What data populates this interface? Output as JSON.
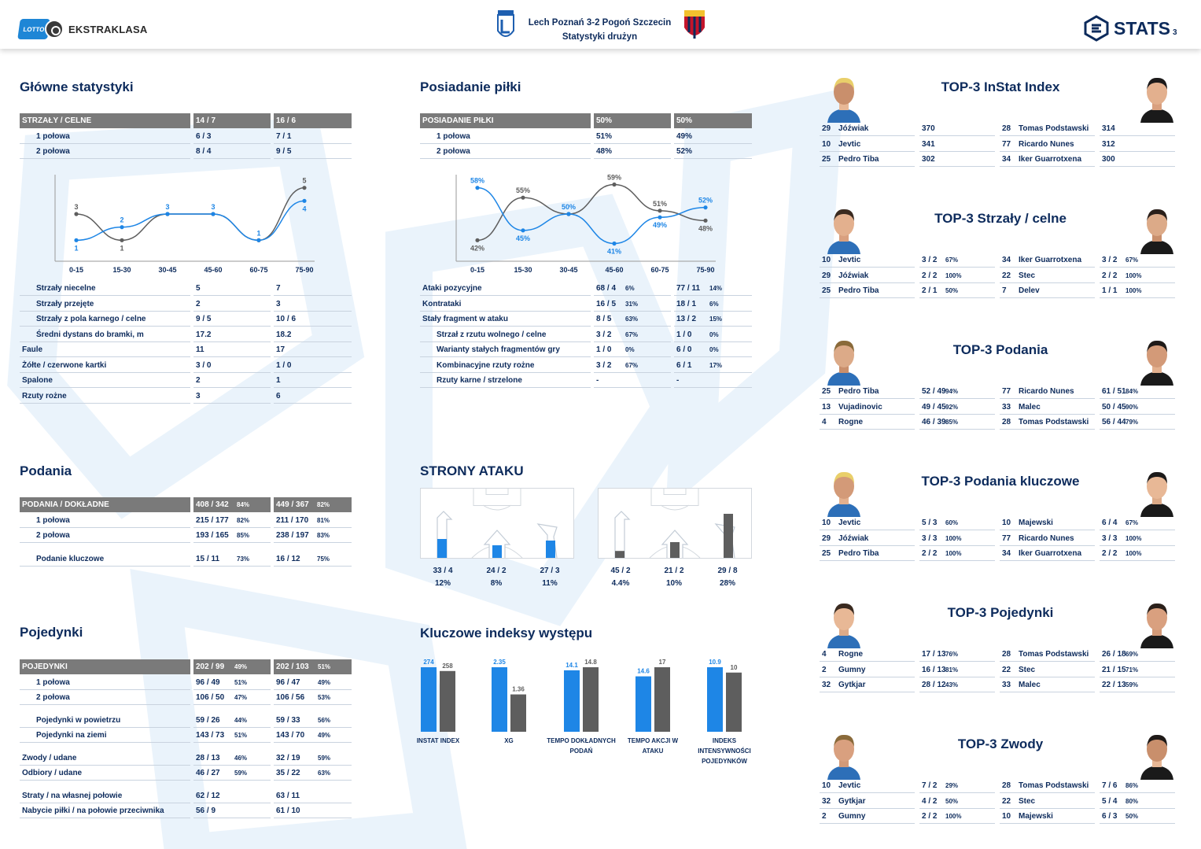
{
  "header": {
    "league": "EKSTRAKLASA",
    "lotto": "LOTTO",
    "match": "Lech Poznań 3-2 Pogoń Szczecin",
    "subtitle": "Statystyki drużyn",
    "brand": "STATS",
    "page": "3"
  },
  "colors": {
    "lech": "#1e86e6",
    "pogon": "#5e5e5e",
    "navy": "#0d2b5c",
    "header_grey": "#7a7a7a"
  },
  "main": {
    "title": "Główne statystyki",
    "head": {
      "label": "STRZAŁY / CELNE",
      "a": "14 / 7",
      "b": "16 / 6"
    },
    "halves": [
      {
        "label": "1 połowa",
        "a": "6 / 3",
        "b": "7 / 1"
      },
      {
        "label": "2 połowa",
        "a": "8 / 4",
        "b": "9 / 5"
      }
    ],
    "rows": [
      {
        "label": "Strzały niecelne",
        "a": "5",
        "b": "7",
        "indent": true
      },
      {
        "label": "Strzały przejęte",
        "a": "2",
        "b": "3",
        "indent": true
      },
      {
        "label": "Strzały z pola karnego / celne",
        "a": "9 / 5",
        "b": "10 / 6",
        "indent": true
      },
      {
        "label": "Średni dystans do bramki, m",
        "a": "17.2",
        "b": "18.2",
        "indent": true
      },
      {
        "label": "Faule",
        "a": "11",
        "b": "17",
        "indent": false
      },
      {
        "label": "Żółte / czerwone kartki",
        "a": "3 / 0",
        "b": "1 / 0",
        "indent": false
      },
      {
        "label": "Spalone",
        "a": "2",
        "b": "1",
        "indent": false
      },
      {
        "label": "Rzuty rożne",
        "a": "3",
        "b": "6",
        "indent": false
      }
    ]
  },
  "shots_chart": {
    "type": "line",
    "categories": [
      "0-15",
      "15-30",
      "30-45",
      "45-60",
      "60-75",
      "75-90"
    ],
    "series": [
      {
        "values": [
          1,
          2,
          3,
          3,
          1,
          4
        ],
        "labels": [
          "1",
          "2",
          "3",
          "3",
          "1",
          "4"
        ]
      },
      {
        "values": [
          3,
          1,
          3,
          3,
          1,
          5
        ],
        "labels": [
          "3",
          "1",
          "",
          "",
          "",
          "5"
        ]
      }
    ],
    "ylim": [
      0,
      6
    ]
  },
  "possession": {
    "title": "Posiadanie piłki",
    "head": {
      "label": "POSIADANIE PIŁKI",
      "a": "50%",
      "b": "50%"
    },
    "halves": [
      {
        "label": "1 połowa",
        "a": "51%",
        "b": "49%"
      },
      {
        "label": "2 połowa",
        "a": "48%",
        "b": "52%"
      }
    ],
    "rows": [
      {
        "label": "Ataki pozycyjne",
        "a": "68 / 4",
        "ap": "6%",
        "b": "77 / 11",
        "bp": "14%",
        "indent": false
      },
      {
        "label": "Kontrataki",
        "a": "16 / 5",
        "ap": "31%",
        "b": "18 / 1",
        "bp": "6%",
        "indent": false
      },
      {
        "label": "Stały fragment w ataku",
        "a": "8 / 5",
        "ap": "63%",
        "b": "13 / 2",
        "bp": "15%",
        "indent": false
      },
      {
        "label": "Strzał z rzutu wolnego / celne",
        "a": "3 / 2",
        "ap": "67%",
        "b": "1 / 0",
        "bp": "0%",
        "indent": true
      },
      {
        "label": "Warianty stałych fragmentów gry",
        "a": "1 / 0",
        "ap": "0%",
        "b": "6 / 0",
        "bp": "0%",
        "indent": true
      },
      {
        "label": "Kombinacyjne rzuty rożne",
        "a": "3 / 2",
        "ap": "67%",
        "b": "6 / 1",
        "bp": "17%",
        "indent": true
      },
      {
        "label": "Rzuty karne / strzelone",
        "a": "-",
        "ap": "",
        "b": "-",
        "bp": "",
        "indent": true
      }
    ]
  },
  "possession_chart": {
    "type": "line",
    "categories": [
      "0-15",
      "15-30",
      "30-45",
      "45-60",
      "60-75",
      "75-90"
    ],
    "series": [
      {
        "values": [
          58,
          45,
          50,
          41,
          49,
          52
        ],
        "labels": [
          "58%",
          "45%",
          "50%",
          "41%",
          "49%",
          "52%"
        ]
      },
      {
        "values": [
          42,
          55,
          50,
          59,
          51,
          48
        ],
        "labels": [
          "42%",
          "55%",
          "",
          "59%",
          "51%",
          "48%"
        ]
      }
    ],
    "ylim": [
      38,
      62
    ]
  },
  "passes": {
    "title": "Podania",
    "head": {
      "label": "PODANIA / DOKŁADNE",
      "a": "408 / 342",
      "ap": "84%",
      "b": "449 / 367",
      "bp": "82%"
    },
    "rows": [
      {
        "label": "1 połowa",
        "a": "215 / 177",
        "ap": "82%",
        "b": "211 / 170",
        "bp": "81%"
      },
      {
        "label": "2 połowa",
        "a": "193 / 165",
        "ap": "85%",
        "b": "238 / 197",
        "bp": "83%"
      },
      {
        "label": "Podanie kluczowe",
        "a": "15 / 11",
        "ap": "73%",
        "b": "16 / 12",
        "bp": "75%"
      }
    ]
  },
  "duels": {
    "title": "Pojedynki",
    "head": {
      "label": "POJEDYNKI",
      "a": "202 / 99",
      "ap": "49%",
      "b": "202 / 103",
      "bp": "51%"
    },
    "rows": [
      {
        "label": "1 połowa",
        "a": "96 / 49",
        "ap": "51%",
        "b": "96 / 47",
        "bp": "49%",
        "indent": true
      },
      {
        "label": "2 połowa",
        "a": "106 / 50",
        "ap": "47%",
        "b": "106 / 56",
        "bp": "53%",
        "indent": true
      },
      {
        "label": "Pojedynki w powietrzu",
        "a": "59 / 26",
        "ap": "44%",
        "b": "59 / 33",
        "bp": "56%",
        "indent": true
      },
      {
        "label": "Pojedynki na ziemi",
        "a": "143 / 73",
        "ap": "51%",
        "b": "143 / 70",
        "bp": "49%",
        "indent": true
      },
      {
        "label": "Zwody / udane",
        "a": "28 / 13",
        "ap": "46%",
        "b": "32 / 19",
        "bp": "59%",
        "indent": false
      },
      {
        "label": "Odbiory / udane",
        "a": "46 / 27",
        "ap": "59%",
        "b": "35 / 22",
        "bp": "63%",
        "indent": false
      },
      {
        "label": "Straty / na własnej połowie",
        "a": "62 / 12",
        "ap": "",
        "b": "63 / 11",
        "bp": "",
        "indent": false
      },
      {
        "label": "Nabycie piłki / na połowie przeciwnika",
        "a": "56 / 9",
        "ap": "",
        "b": "61 / 10",
        "bp": "",
        "indent": false
      }
    ]
  },
  "attack": {
    "title": "STRONY ATAKU",
    "lech": [
      {
        "value": "33 / 4",
        "pct": "12%",
        "fill": 12
      },
      {
        "value": "24 / 2",
        "pct": "8%",
        "fill": 8
      },
      {
        "value": "27 / 3",
        "pct": "11%",
        "fill": 11
      }
    ],
    "pogon": [
      {
        "value": "45 / 2",
        "pct": "4.4%",
        "fill": 4.4
      },
      {
        "value": "21 / 2",
        "pct": "10%",
        "fill": 10
      },
      {
        "value": "29 / 8",
        "pct": "28%",
        "fill": 28
      }
    ]
  },
  "key_indexes": {
    "title": "Kluczowe indeksy występu",
    "items": [
      {
        "label": "INSTAT INDEX",
        "a": "274",
        "b": "258",
        "av": 274,
        "bv": 258
      },
      {
        "label": "XG",
        "a": "2.35",
        "b": "1.36",
        "av": 2.35,
        "bv": 1.36
      },
      {
        "label": "TEMPO DOKŁADNYCH PODAŃ",
        "a": "14.1",
        "b": "14.8",
        "av": 14.1,
        "bv": 14.8
      },
      {
        "label": "TEMPO AKCJI W ATAKU",
        "a": "14.6",
        "b": "17",
        "av": 14.6,
        "bv": 17
      },
      {
        "label": "INDEKS INTENSYWNOŚCI POJEDYNKÓW",
        "a": "10.9",
        "b": "10",
        "av": 10.9,
        "bv": 10
      }
    ]
  },
  "tops": [
    {
      "title": "TOP-3 InStat Index",
      "left": [
        {
          "n": "29",
          "name": "Jóźwiak",
          "v": "370",
          "p": ""
        },
        {
          "n": "10",
          "name": "Jevtic",
          "v": "341",
          "p": ""
        },
        {
          "n": "25",
          "name": "Pedro Tiba",
          "v": "302",
          "p": ""
        }
      ],
      "right": [
        {
          "n": "28",
          "name": "Tomas Podstawski",
          "v": "314",
          "p": ""
        },
        {
          "n": "77",
          "name": "Ricardo Nunes",
          "v": "312",
          "p": ""
        },
        {
          "n": "34",
          "name": "Iker Guarrotxena",
          "v": "300",
          "p": ""
        }
      ]
    },
    {
      "title": "TOP-3 Strzały / celne",
      "left": [
        {
          "n": "10",
          "name": "Jevtic",
          "v": "3 / 2",
          "p": "67%"
        },
        {
          "n": "29",
          "name": "Jóźwiak",
          "v": "2 / 2",
          "p": "100%"
        },
        {
          "n": "25",
          "name": "Pedro Tiba",
          "v": "2 / 1",
          "p": "50%"
        }
      ],
      "right": [
        {
          "n": "34",
          "name": "Iker Guarrotxena",
          "v": "3 / 2",
          "p": "67%"
        },
        {
          "n": "22",
          "name": "Stec",
          "v": "2 / 2",
          "p": "100%"
        },
        {
          "n": "7",
          "name": "Delev",
          "v": "1 / 1",
          "p": "100%"
        }
      ]
    },
    {
      "title": "TOP-3 Podania",
      "left": [
        {
          "n": "25",
          "name": "Pedro Tiba",
          "v": "52 / 49",
          "p": "94%"
        },
        {
          "n": "13",
          "name": "Vujadinovic",
          "v": "49 / 45",
          "p": "92%"
        },
        {
          "n": "4",
          "name": "Rogne",
          "v": "46 / 39",
          "p": "85%"
        }
      ],
      "right": [
        {
          "n": "77",
          "name": "Ricardo Nunes",
          "v": "61 / 51",
          "p": "84%"
        },
        {
          "n": "33",
          "name": "Malec",
          "v": "50 / 45",
          "p": "90%"
        },
        {
          "n": "28",
          "name": "Tomas Podstawski",
          "v": "56 / 44",
          "p": "79%"
        }
      ]
    },
    {
      "title": "TOP-3 Podania kluczowe",
      "left": [
        {
          "n": "10",
          "name": "Jevtic",
          "v": "5 / 3",
          "p": "60%"
        },
        {
          "n": "29",
          "name": "Jóźwiak",
          "v": "3 / 3",
          "p": "100%"
        },
        {
          "n": "25",
          "name": "Pedro Tiba",
          "v": "2 / 2",
          "p": "100%"
        }
      ],
      "right": [
        {
          "n": "10",
          "name": "Majewski",
          "v": "6 / 4",
          "p": "67%"
        },
        {
          "n": "77",
          "name": "Ricardo Nunes",
          "v": "3 / 3",
          "p": "100%"
        },
        {
          "n": "34",
          "name": "Iker Guarrotxena",
          "v": "2 / 2",
          "p": "100%"
        }
      ]
    },
    {
      "title": "TOP-3 Pojedynki",
      "left": [
        {
          "n": "4",
          "name": "Rogne",
          "v": "17 / 13",
          "p": "76%"
        },
        {
          "n": "2",
          "name": "Gumny",
          "v": "16 / 13",
          "p": "81%"
        },
        {
          "n": "32",
          "name": "Gytkjar",
          "v": "28 / 12",
          "p": "43%"
        }
      ],
      "right": [
        {
          "n": "28",
          "name": "Tomas Podstawski",
          "v": "26 / 18",
          "p": "69%"
        },
        {
          "n": "22",
          "name": "Stec",
          "v": "21 / 15",
          "p": "71%"
        },
        {
          "n": "33",
          "name": "Malec",
          "v": "22 / 13",
          "p": "59%"
        }
      ]
    },
    {
      "title": "TOP-3 Zwody",
      "left": [
        {
          "n": "10",
          "name": "Jevtic",
          "v": "7 / 2",
          "p": "29%"
        },
        {
          "n": "32",
          "name": "Gytkjar",
          "v": "4 / 2",
          "p": "50%"
        },
        {
          "n": "2",
          "name": "Gumny",
          "v": "2 / 2",
          "p": "100%"
        }
      ],
      "right": [
        {
          "n": "28",
          "name": "Tomas Podstawski",
          "v": "7 / 6",
          "p": "86%"
        },
        {
          "n": "22",
          "name": "Stec",
          "v": "5 / 4",
          "p": "80%"
        },
        {
          "n": "10",
          "name": "Majewski",
          "v": "6 / 3",
          "p": "50%"
        }
      ]
    }
  ]
}
